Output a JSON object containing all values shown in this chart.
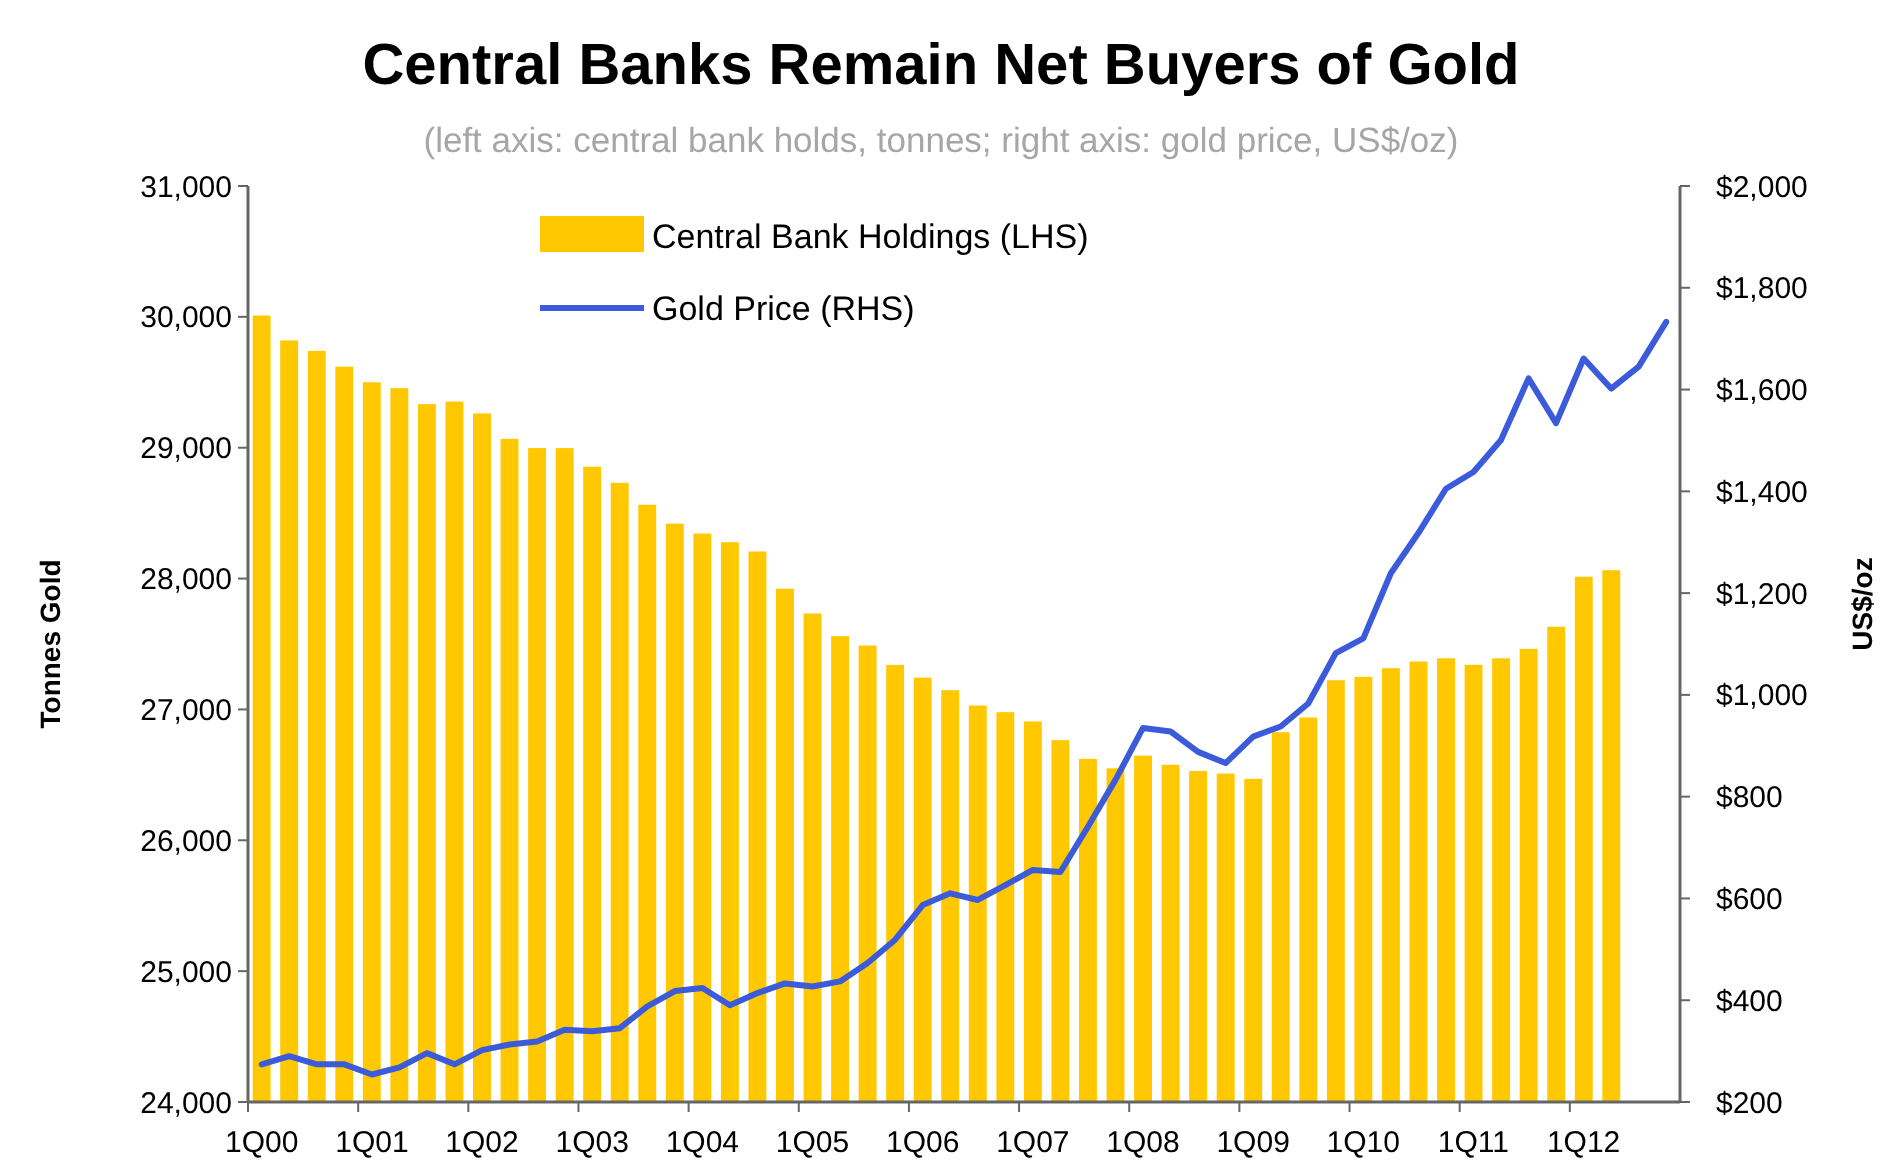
{
  "chart_data": {
    "type": "bar",
    "title": "Central Banks Remain Net Buyers of Gold",
    "subtitle": "(left axis: central bank holds, tonnes; right axis: gold price, US$/oz)",
    "ylabel": "Tonnes Gold",
    "y2label": "US$/oz",
    "categories": [
      "1Q00",
      null,
      null,
      null,
      "1Q01",
      null,
      null,
      null,
      "1Q02",
      null,
      null,
      null,
      "1Q03",
      null,
      null,
      null,
      "1Q04",
      null,
      null,
      null,
      "1Q05",
      null,
      null,
      null,
      "1Q06",
      null,
      null,
      null,
      "1Q07",
      null,
      null,
      null,
      "1Q08",
      null,
      null,
      null,
      "1Q09",
      null,
      null,
      null,
      "1Q10",
      null,
      null,
      null,
      "1Q11",
      null,
      null,
      null,
      "1Q12",
      null,
      null,
      null
    ],
    "series": [
      {
        "name": "Central Bank Holdings (LHS)",
        "color": "#ffc800",
        "values": [
          30010,
          29820,
          29740,
          29620,
          29500,
          29455,
          29333,
          29353,
          29262,
          29068,
          28997,
          28997,
          28855,
          28732,
          28564,
          28420,
          28344,
          28278,
          28207,
          27922,
          27733,
          27560,
          27488,
          27340,
          27243,
          27147,
          27030,
          26979,
          26908,
          26765,
          26622,
          26550,
          26647,
          26577,
          26530,
          26510,
          26470,
          26826,
          26938,
          27223,
          27249,
          27315,
          27366,
          27391,
          27341,
          27391,
          27463,
          27632,
          28014,
          28064,
          null,
          null
        ]
      },
      {
        "name": "Gold Price (RHS)",
        "type": "line",
        "axis": "y2",
        "color": "#3b5bdb",
        "values": [
          274,
          290,
          274,
          274,
          254,
          268,
          296,
          274,
          302,
          313,
          319,
          342,
          339,
          345,
          388,
          418,
          424,
          390,
          414,
          433,
          427,
          437,
          473,
          519,
          587,
          610,
          597,
          626,
          656,
          652,
          741,
          833,
          935,
          928,
          888,
          866,
          918,
          938,
          983,
          1082,
          1111,
          1239,
          1318,
          1405,
          1438,
          1501,
          1622,
          1534,
          1661,
          1602,
          1645,
          1733
        ]
      }
    ],
    "ylim": [
      24000,
      31000
    ],
    "yticks": [
      {
        "value": 24000,
        "label": "24,000"
      },
      {
        "value": 25000,
        "label": "25,000"
      },
      {
        "value": 26000,
        "label": "26,000"
      },
      {
        "value": 27000,
        "label": "27,000"
      },
      {
        "value": 28000,
        "label": "28,000"
      },
      {
        "value": 29000,
        "label": "29,000"
      },
      {
        "value": 30000,
        "label": "30,000"
      },
      {
        "value": 31000,
        "label": "31,000"
      }
    ],
    "y2lim": [
      200,
      2000
    ],
    "y2ticks": [
      {
        "value": 200,
        "label": "$200"
      },
      {
        "value": 400,
        "label": "$400"
      },
      {
        "value": 600,
        "label": "$600"
      },
      {
        "value": 800,
        "label": "$800"
      },
      {
        "value": 1000,
        "label": "$1,000"
      },
      {
        "value": 1200,
        "label": "$1,200"
      },
      {
        "value": 1400,
        "label": "$1,400"
      },
      {
        "value": 1600,
        "label": "$1,600"
      },
      {
        "value": 1800,
        "label": "$1,800"
      },
      {
        "value": 2000,
        "label": "$2,000"
      }
    ],
    "grid": false,
    "legend": "top",
    "marker": "none",
    "line_style": "solid"
  }
}
